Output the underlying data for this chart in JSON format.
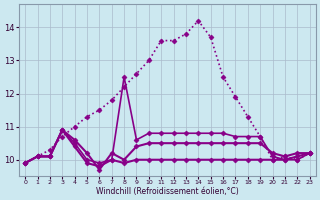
{
  "xlabel": "Windchill (Refroidissement éolien,°C)",
  "background_color": "#cce8f0",
  "line_color": "#880088",
  "grid_color": "#aabbcc",
  "xlim": [
    -0.5,
    23.5
  ],
  "ylim": [
    9.5,
    14.7
  ],
  "yticks": [
    10,
    11,
    12,
    13,
    14
  ],
  "xticks": [
    0,
    1,
    2,
    3,
    4,
    5,
    6,
    7,
    8,
    9,
    10,
    11,
    12,
    13,
    14,
    15,
    16,
    17,
    18,
    19,
    20,
    21,
    22,
    23
  ],
  "series": [
    {
      "x": [
        0,
        1,
        2,
        3,
        4,
        5,
        6,
        7,
        8,
        9,
        10,
        11,
        12,
        13,
        14,
        15,
        16,
        17,
        18,
        19,
        20,
        21,
        22,
        23
      ],
      "y": [
        9.9,
        10.1,
        10.3,
        10.7,
        11.0,
        11.3,
        11.5,
        11.8,
        12.2,
        12.6,
        13.0,
        13.6,
        13.6,
        13.8,
        14.2,
        13.7,
        12.5,
        11.9,
        11.3,
        10.7,
        10.0,
        10.1,
        10.0,
        10.2
      ],
      "linestyle": ":",
      "linewidth": 1.2,
      "marker": "D",
      "markersize": 2.5
    },
    {
      "x": [
        0,
        1,
        2,
        3,
        4,
        5,
        6,
        7,
        8,
        9,
        10,
        11,
        12,
        13,
        14,
        15,
        16,
        17,
        18,
        19,
        20,
        21,
        22,
        23
      ],
      "y": [
        9.9,
        10.1,
        10.1,
        10.9,
        10.5,
        10.0,
        9.9,
        10.0,
        12.5,
        10.6,
        10.8,
        10.8,
        10.8,
        10.8,
        10.8,
        10.8,
        10.8,
        10.7,
        10.7,
        10.7,
        10.1,
        10.0,
        10.0,
        10.2
      ],
      "linestyle": "-",
      "linewidth": 1.2,
      "marker": "D",
      "markersize": 2.5
    },
    {
      "x": [
        0,
        1,
        2,
        3,
        4,
        5,
        6,
        7,
        8,
        9,
        10,
        11,
        12,
        13,
        14,
        15,
        16,
        17,
        18,
        19,
        20,
        21,
        22,
        23
      ],
      "y": [
        9.9,
        10.1,
        10.1,
        10.9,
        10.6,
        10.2,
        9.7,
        10.2,
        10.0,
        10.4,
        10.5,
        10.5,
        10.5,
        10.5,
        10.5,
        10.5,
        10.5,
        10.5,
        10.5,
        10.5,
        10.2,
        10.1,
        10.2,
        10.2
      ],
      "linestyle": "-",
      "linewidth": 1.5,
      "marker": "D",
      "markersize": 2.5
    },
    {
      "x": [
        0,
        1,
        2,
        3,
        4,
        5,
        6,
        7,
        8,
        9,
        10,
        11,
        12,
        13,
        14,
        15,
        16,
        17,
        18,
        19,
        20,
        21,
        22,
        23
      ],
      "y": [
        9.9,
        10.1,
        10.1,
        10.9,
        10.4,
        9.9,
        9.8,
        10.0,
        9.9,
        10.0,
        10.0,
        10.0,
        10.0,
        10.0,
        10.0,
        10.0,
        10.0,
        10.0,
        10.0,
        10.0,
        10.0,
        10.0,
        10.1,
        10.2
      ],
      "linestyle": "-",
      "linewidth": 1.5,
      "marker": "D",
      "markersize": 2.5
    }
  ]
}
